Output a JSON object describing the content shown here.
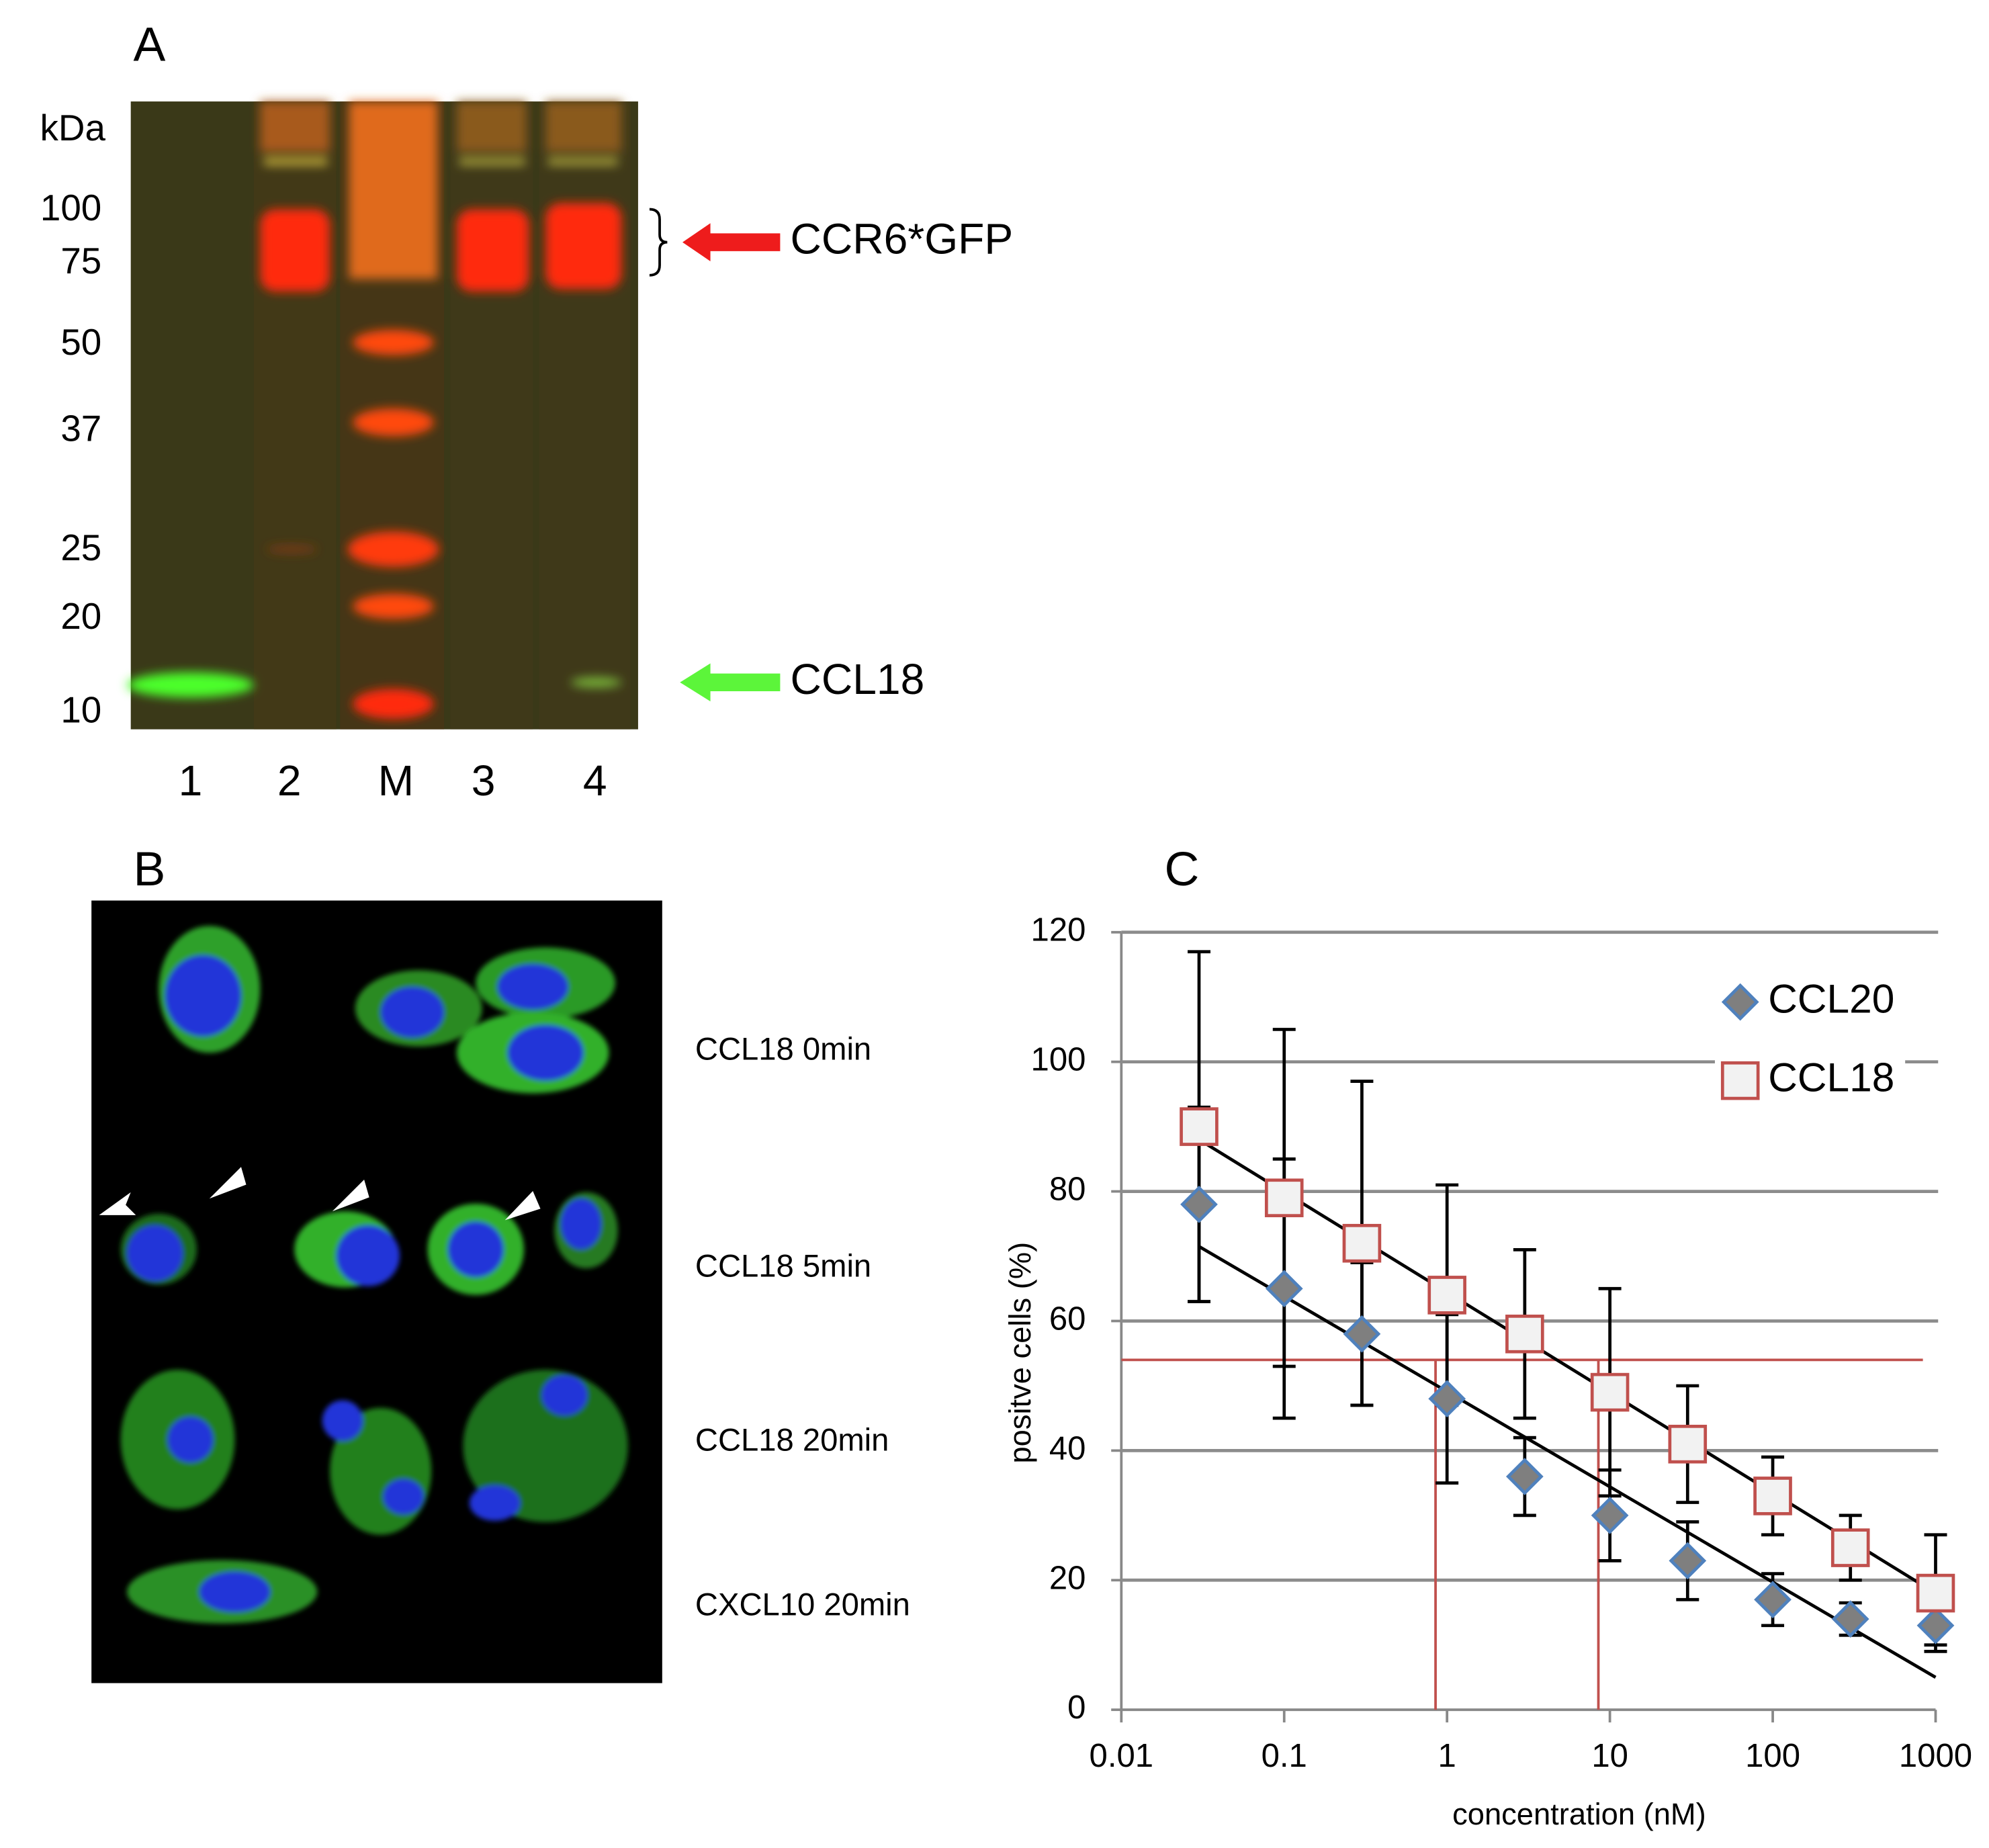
{
  "panel_labels": [
    "A",
    "B",
    "C"
  ],
  "gel": {
    "unit_label": "kDa",
    "markers": [
      "100",
      "75",
      "50",
      "37",
      "25",
      "20",
      "10"
    ],
    "lanes": [
      "1",
      "2",
      "M",
      "3",
      "4"
    ],
    "annotations": [
      "CCR6*GFP",
      "CCL18"
    ]
  },
  "microscopy": {
    "rows": [
      "CCL18 0min",
      "CCL18 5min",
      "CCL18 20min",
      "CXCL10 20min"
    ]
  },
  "chart_data": {
    "type": "scatter",
    "xlabel": "concentration (nM)",
    "ylabel": "positve cells (%)",
    "xlog": true,
    "xlim": [
      0.01,
      1000
    ],
    "ylim": [
      0,
      120
    ],
    "xticks": [
      0.01,
      0.1,
      1,
      10,
      100,
      1000
    ],
    "yticks": [
      0,
      20,
      40,
      60,
      80,
      100,
      120
    ],
    "grid": true,
    "legend": "upper right",
    "x": [
      0.03,
      0.1,
      0.3,
      1,
      3,
      10,
      30,
      100,
      300,
      1000
    ],
    "series": [
      {
        "name": "CCL20",
        "marker": "diamond",
        "color": "#7f7f7f",
        "edgecolor": "#4f81bd",
        "values": [
          78,
          65,
          58,
          48,
          36,
          30,
          23,
          17,
          14,
          13
        ],
        "errors": [
          15,
          20,
          11,
          13,
          6,
          7,
          6,
          4,
          2.5,
          3
        ],
        "trendline": {
          "x": [
            0.03,
            1000
          ],
          "values": [
            71.5,
            5
          ]
        }
      },
      {
        "name": "CCL18",
        "marker": "square",
        "color": "#f2f2f2",
        "edgecolor": "#c0504d",
        "values": [
          90,
          79,
          72,
          64,
          58,
          49,
          41,
          33,
          25,
          18
        ],
        "errors": [
          27,
          26,
          25,
          17,
          13,
          16,
          9,
          6,
          5,
          9
        ],
        "trendline": {
          "x": [
            0.03,
            1000
          ],
          "values": [
            88,
            18
          ]
        }
      }
    ],
    "reference_lines": {
      "color": "#c0504d",
      "y": 54,
      "x": [
        0.85,
        8.5
      ]
    }
  }
}
